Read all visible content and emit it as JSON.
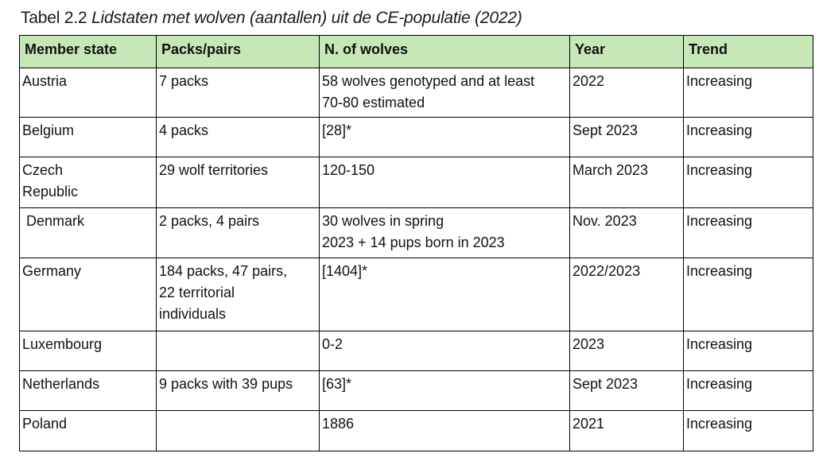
{
  "caption": {
    "prefix": "Tabel 2.2 ",
    "title": "Lidstaten met wolven (aantallen) uit de CE-populatie (2022)"
  },
  "table": {
    "headers": [
      "Member state",
      "Packs/pairs",
      "N. of wolves",
      "Year",
      "Trend"
    ],
    "rows": [
      {
        "state": [
          "Austria"
        ],
        "packs": [
          "7 packs"
        ],
        "wolves": [
          "58 wolves genotyped and at least",
          "70-80 estimated"
        ],
        "year": "2022",
        "trend": "Increasing"
      },
      {
        "state": [
          "Belgium"
        ],
        "packs": [
          "4 packs"
        ],
        "wolves": [
          "[28]*"
        ],
        "year": "Sept 2023",
        "trend": "Increasing"
      },
      {
        "state": [
          "Czech",
          "Republic"
        ],
        "packs": [
          "29 wolf territories"
        ],
        "wolves": [
          "120-150"
        ],
        "year": "March 2023",
        "trend": "Increasing"
      },
      {
        "state": [
          "Denmark"
        ],
        "packs": [
          "2 packs, 4 pairs"
        ],
        "wolves": [
          "30 wolves in spring",
          "2023 + 14 pups born in 2023"
        ],
        "year": "Nov. 2023",
        "trend": "Increasing"
      },
      {
        "state": [
          "Germany"
        ],
        "packs": [
          "184 packs, 47 pairs,",
          "22 territorial",
          "individuals"
        ],
        "wolves": [
          "[1404]*"
        ],
        "year": "2022/2023",
        "trend": "Increasing"
      },
      {
        "state": [
          "Luxembourg"
        ],
        "packs": [
          ""
        ],
        "wolves": [
          "0-2"
        ],
        "year": "2023",
        "trend": "Increasing"
      },
      {
        "state": [
          "Netherlands"
        ],
        "packs": [
          "9 packs with 39 pups"
        ],
        "wolves": [
          "[63]*"
        ],
        "year": "Sept 2023",
        "trend": "Increasing"
      },
      {
        "state": [
          "Poland"
        ],
        "packs": [
          ""
        ],
        "wolves": [
          "1886"
        ],
        "year": "2021",
        "trend": "Increasing"
      }
    ]
  },
  "colors": {
    "header_bg": "#c6e8b6",
    "border": "#000000"
  }
}
